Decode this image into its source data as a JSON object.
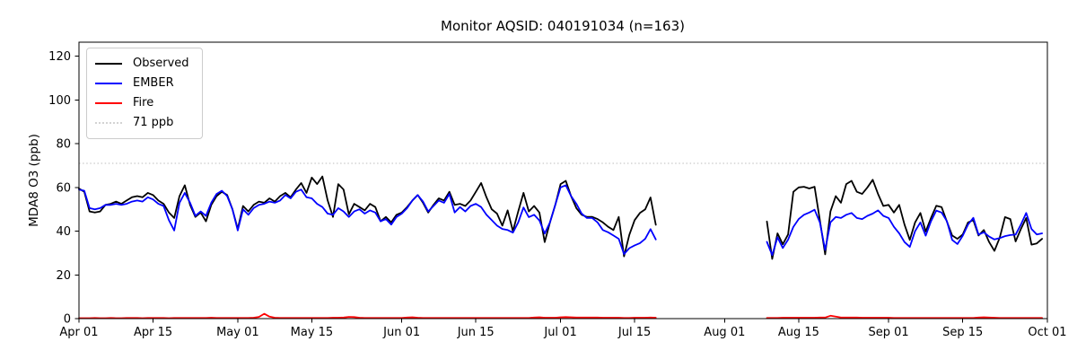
{
  "chart_data": {
    "type": "line",
    "title": "Monitor AQSID: 040191034 (n=163)",
    "xlabel": "",
    "ylabel": "MDA8 O3 (ppb)",
    "ylim": [
      0,
      126.4
    ],
    "yticks": [
      0,
      20,
      40,
      60,
      80,
      100,
      120
    ],
    "grid": false,
    "legend_position": "upper-left",
    "x_axis": {
      "total_days": 183,
      "ticks": [
        {
          "day": 0,
          "label": "Apr 01"
        },
        {
          "day": 14,
          "label": "Apr 15"
        },
        {
          "day": 30,
          "label": "May 01"
        },
        {
          "day": 44,
          "label": "May 15"
        },
        {
          "day": 61,
          "label": "Jun 01"
        },
        {
          "day": 75,
          "label": "Jun 15"
        },
        {
          "day": 91,
          "label": "Jul 01"
        },
        {
          "day": 105,
          "label": "Jul 15"
        },
        {
          "day": 122,
          "label": "Aug 01"
        },
        {
          "day": 136,
          "label": "Aug 15"
        },
        {
          "day": 153,
          "label": "Sep 01"
        },
        {
          "day": 167,
          "label": "Sep 15"
        },
        {
          "day": 183,
          "label": "Oct 01"
        }
      ]
    },
    "threshold": {
      "label": "71 ppb",
      "value": 71,
      "color": "#d3d3d3",
      "style": "dotted"
    },
    "legend": [
      {
        "label": "Observed",
        "color": "#000000",
        "style": "solid"
      },
      {
        "label": "EMBER",
        "color": "#0000ff",
        "style": "solid"
      },
      {
        "label": "Fire",
        "color": "#ff0000",
        "style": "solid"
      },
      {
        "label": "71 ppb",
        "color": "#d3d3d3",
        "style": "dotted"
      }
    ],
    "data_gap": {
      "missing_from_day": 110,
      "missing_to_day": 129
    },
    "series": [
      {
        "name": "Observed",
        "color": "#000000",
        "segments": [
          {
            "start_day": 0,
            "values": [
              59.5,
              58,
              49,
              48.5,
              49,
              52,
              52.5,
              53.5,
              52.5,
              54,
              55.5,
              56,
              55.5,
              57.5,
              56.5,
              54,
              52.5,
              48.5,
              46,
              56,
              61,
              52,
              46.5,
              48.5,
              44.5,
              52,
              56,
              58,
              56.5,
              50,
              41,
              51.5,
              49,
              52,
              53.5,
              53,
              55,
              53.5,
              56,
              57.5,
              55.5,
              59,
              62,
              57.5,
              64.5,
              61.5,
              65,
              54,
              46.5,
              61.5,
              59,
              47.7,
              52.5,
              51,
              49.5,
              52.5,
              51,
              44.5,
              46.5,
              44,
              47.5,
              48.5,
              51,
              54,
              56.5,
              53,
              48.5,
              52,
              55,
              54,
              58,
              52,
              52.5,
              51.5,
              54,
              58,
              62,
              55.5,
              50,
              48,
              42.5,
              49.5,
              40,
              49,
              57.5,
              49,
              51.5,
              48.5,
              35,
              44,
              52,
              61.5,
              63,
              56,
              50.5,
              47.5,
              46.5,
              46.5,
              45.5,
              44,
              42,
              40.5,
              46.5,
              28.5,
              38.3,
              45,
              48.3,
              50,
              55.4,
              42.9
            ]
          },
          {
            "start_day": 130,
            "values": [
              44.4,
              27.3,
              39,
              34,
              38.5,
              58,
              60,
              60.3,
              59.5,
              60.3,
              45,
              29.4,
              49,
              56,
              53,
              61.5,
              63,
              58,
              57,
              60,
              63.5,
              57,
              51.5,
              52,
              48.5,
              52,
              43,
              36,
              44,
              48.3,
              39.8,
              46,
              51.6,
              51,
              44.4,
              38,
              36.5,
              38.5,
              44,
              45,
              38,
              40.5,
              35,
              31,
              37,
              46.4,
              45.5,
              35.3,
              41,
              46,
              33.8,
              34.4,
              36.5
            ]
          }
        ]
      },
      {
        "name": "EMBER",
        "color": "#0000ff",
        "segments": [
          {
            "start_day": 0,
            "values": [
              59,
              58.5,
              50.5,
              50,
              50.5,
              52,
              52,
              52.5,
              52,
              52.5,
              53.5,
              54,
              53.5,
              55.5,
              54.5,
              52.5,
              51.5,
              45,
              40.3,
              53,
              57.5,
              53,
              47,
              49,
              47,
              53,
              57,
              58.5,
              56,
              50,
              40.3,
              50,
              47.5,
              50.5,
              52,
              52.5,
              53.5,
              53,
              54,
              56.5,
              55,
              58,
              59,
              55.5,
              55,
              52.5,
              51,
              48,
              47.5,
              50.5,
              49,
              46.5,
              49,
              50,
              48,
              49.5,
              48.5,
              44.5,
              45.5,
              43,
              46.5,
              48,
              50.5,
              54,
              56.5,
              53.5,
              49,
              51.5,
              54,
              53,
              57,
              48.5,
              51,
              49,
              51.5,
              52.5,
              51,
              47.5,
              45,
              42.5,
              41,
              40.5,
              39.3,
              44,
              50.8,
              46.4,
              47.5,
              44.9,
              38.9,
              44,
              52,
              60,
              61,
              56,
              52.5,
              48,
              46,
              46,
              44,
              40.5,
              39.5,
              38,
              36.5,
              29.5,
              32.2,
              33.5,
              34.5,
              36.5,
              40.9,
              36.2
            ]
          },
          {
            "start_day": 130,
            "values": [
              35.1,
              29,
              37.2,
              32.3,
              36.1,
              42,
              45.5,
              47.5,
              48.5,
              49.8,
              44,
              31.4,
              44,
              46.5,
              46,
              47.5,
              48.3,
              46,
              45.5,
              47,
              48,
              49.5,
              47,
              46,
              42,
              39,
              35,
              32.8,
              40,
              44,
              37.9,
              44.5,
              49.4,
              48.5,
              44.6,
              36,
              34.1,
              37.9,
              43,
              46.1,
              38.4,
              39.5,
              37.5,
              36.2,
              36.8,
              37.7,
              38.2,
              38.4,
              43,
              48.3,
              41,
              38.5,
              39
            ]
          }
        ]
      },
      {
        "name": "Fire",
        "color": "#ff0000",
        "segments": [
          {
            "start_day": 0,
            "values": [
              0.2,
              0.2,
              0.2,
              0.3,
              0.2,
              0.2,
              0.3,
              0.2,
              0.2,
              0.3,
              0.3,
              0.3,
              0.2,
              0.3,
              0.3,
              0.3,
              0.3,
              0.2,
              0.3,
              0.3,
              0.3,
              0.3,
              0.3,
              0.3,
              0.3,
              0.4,
              0.3,
              0.3,
              0.3,
              0.3,
              0.3,
              0.3,
              0.3,
              0.4,
              0.8,
              2.2,
              0.9,
              0.4,
              0.3,
              0.3,
              0.3,
              0.3,
              0.3,
              0.3,
              0.3,
              0.3,
              0.3,
              0.3,
              0.4,
              0.4,
              0.5,
              0.8,
              0.7,
              0.4,
              0.3,
              0.3,
              0.3,
              0.3,
              0.3,
              0.3,
              0.3,
              0.3,
              0.5,
              0.6,
              0.4,
              0.3,
              0.3,
              0.3,
              0.3,
              0.3,
              0.3,
              0.3,
              0.3,
              0.3,
              0.3,
              0.3,
              0.3,
              0.3,
              0.3,
              0.3,
              0.3,
              0.3,
              0.3,
              0.3,
              0.3,
              0.3,
              0.5,
              0.6,
              0.4,
              0.4,
              0.4,
              0.6,
              0.7,
              0.6,
              0.5,
              0.5,
              0.5,
              0.5,
              0.5,
              0.4,
              0.4,
              0.4,
              0.4,
              0.3,
              0.3,
              0.4,
              0.4,
              0.4,
              0.5,
              0.4
            ]
          },
          {
            "start_day": 130,
            "values": [
              0.3,
              0.3,
              0.3,
              0.4,
              0.4,
              0.4,
              0.4,
              0.4,
              0.4,
              0.4,
              0.5,
              0.5,
              1.3,
              0.9,
              0.5,
              0.5,
              0.5,
              0.5,
              0.4,
              0.4,
              0.4,
              0.4,
              0.4,
              0.4,
              0.3,
              0.3,
              0.3,
              0.3,
              0.3,
              0.3,
              0.3,
              0.3,
              0.3,
              0.3,
              0.3,
              0.3,
              0.3,
              0.3,
              0.3,
              0.3,
              0.5,
              0.6,
              0.5,
              0.4,
              0.3,
              0.3,
              0.3,
              0.3,
              0.3,
              0.3,
              0.3,
              0.3,
              0.3
            ]
          }
        ]
      }
    ]
  }
}
